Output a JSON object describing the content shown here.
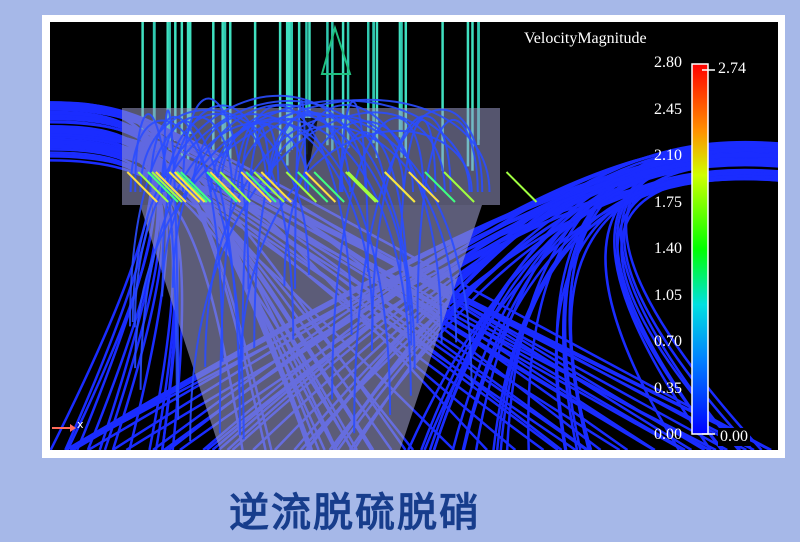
{
  "legend": {
    "title": "VelocityMagnitude",
    "ticks": [
      "2.80",
      "2.45",
      "2.10",
      "1.75",
      "1.40",
      "1.05",
      "0.70",
      "0.35",
      "0.00"
    ],
    "max_label": "2.74",
    "min_label": "0.00",
    "colormap": [
      "#0000ff",
      "#0080ff",
      "#00ffff",
      "#00ff00",
      "#ffff00",
      "#ff8000",
      "#ff0000"
    ]
  },
  "axis_indicator": {
    "label": "x",
    "color": "#ff6a5a"
  },
  "caption": "逆流脱硫脱硝",
  "colors": {
    "background": "#a6b8e8",
    "caption": "#173d8c",
    "streamline_low": "#1a2cff",
    "streamline_high": "#40e0c0"
  }
}
